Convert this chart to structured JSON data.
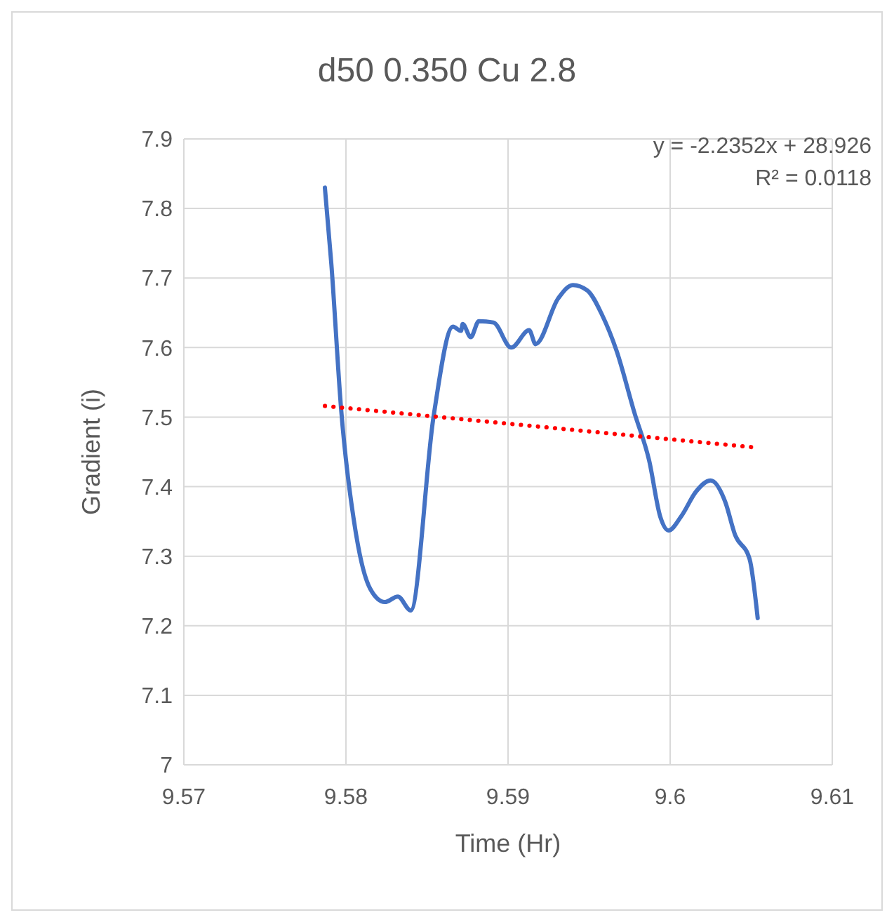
{
  "chart_data": {
    "type": "line",
    "title": "d50 0.350 Cu 2.8",
    "xlabel": "Time (Hr)",
    "ylabel": "Gradient (i)",
    "xlim": [
      9.57,
      9.61
    ],
    "xticks": [
      9.57,
      9.58,
      9.59,
      9.6,
      9.61
    ],
    "ylim": [
      7,
      7.9
    ],
    "yticks": [
      7,
      7.1,
      7.2,
      7.3,
      7.4,
      7.5,
      7.6,
      7.7,
      7.8,
      7.9
    ],
    "grid": true,
    "marker": "none",
    "annotations": [
      "y = -2.2352x + 28.926",
      "R² = 0.0118"
    ],
    "series": [
      {
        "color": "#4472c4",
        "line_style": "solid",
        "x": [
          9.5787,
          9.5791,
          9.5797,
          9.5806,
          9.5815,
          9.5824,
          9.5832,
          9.584,
          9.5854,
          9.5866,
          9.5871,
          9.5872,
          9.5877,
          9.5882,
          9.5891,
          9.5902,
          9.5913,
          9.5917,
          9.5931,
          9.594,
          9.5949,
          9.5958,
          9.5967,
          9.5978,
          9.5987,
          9.5994,
          9.5999,
          9.6007,
          9.6016,
          9.6025,
          9.6034,
          9.604,
          9.6049,
          9.6054
        ],
        "values": [
          7.83,
          7.72,
          7.512,
          7.335,
          7.253,
          7.234,
          7.242,
          7.222,
          7.5,
          7.63,
          7.624,
          7.634,
          7.615,
          7.638,
          7.636,
          7.6,
          7.625,
          7.605,
          7.671,
          7.69,
          7.682,
          7.647,
          7.595,
          7.506,
          7.438,
          7.356,
          7.337,
          7.358,
          7.393,
          7.409,
          7.378,
          7.331,
          7.296,
          7.211
        ]
      },
      {
        "type": "line",
        "color": "#ff0000",
        "line_style": "dotted",
        "x": [
          9.5787,
          9.6054
        ],
        "values": [
          7.516,
          7.456
        ]
      }
    ]
  }
}
